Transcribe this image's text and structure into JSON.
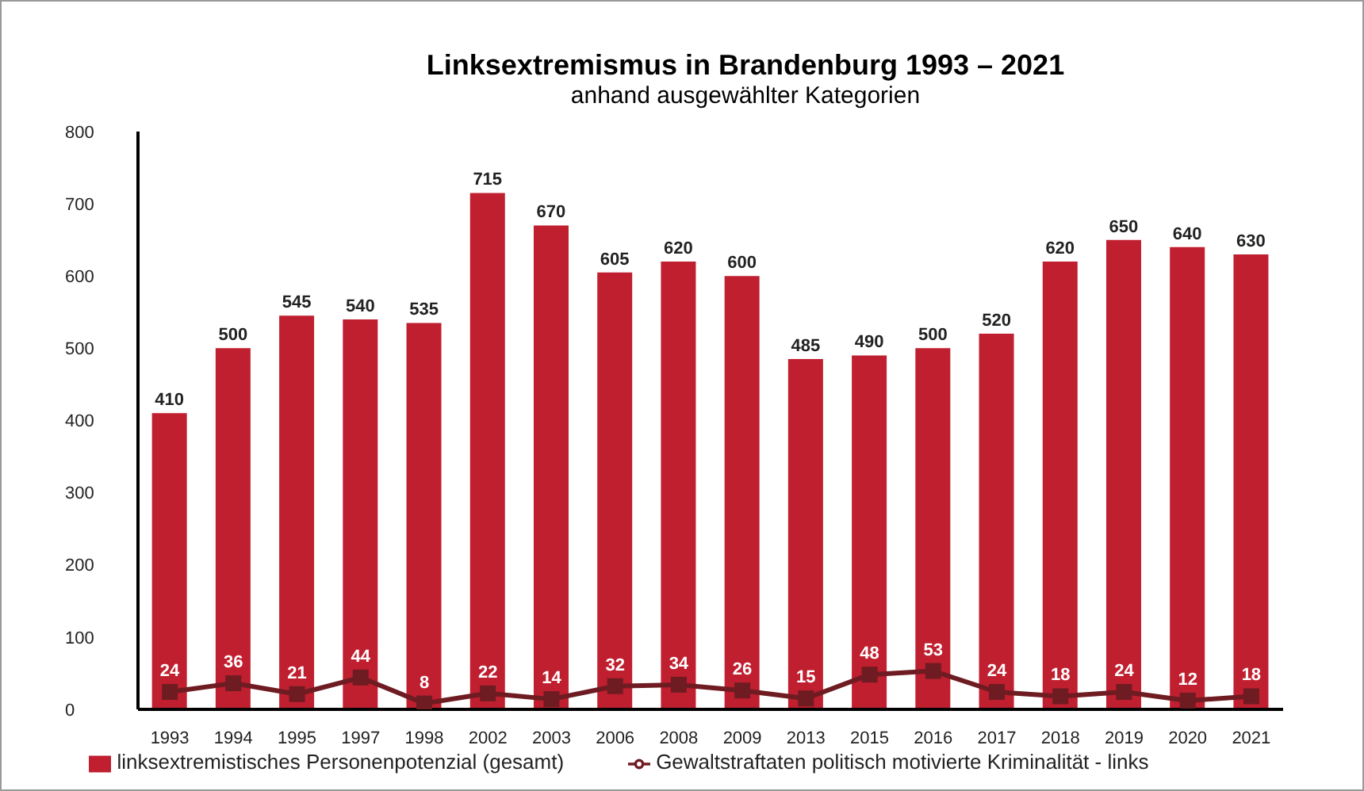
{
  "chart_data": {
    "type": "bar",
    "title": "Linksextremismus in Brandenburg 1993 – 2021",
    "subtitle": "anhand ausgewählter Kategorien",
    "categories": [
      "1993",
      "1994",
      "1995",
      "1997",
      "1998",
      "2002",
      "2003",
      "2006",
      "2008",
      "2009",
      "2013",
      "2015",
      "2016",
      "2017",
      "2018",
      "2019",
      "2020",
      "2021"
    ],
    "series": [
      {
        "name": "linksextremistisches Personenpotenzial (gesamt)",
        "color": "#c01f2f",
        "values": [
          410,
          500,
          545,
          540,
          535,
          715,
          670,
          605,
          620,
          600,
          485,
          490,
          500,
          520,
          620,
          650,
          640,
          630
        ]
      },
      {
        "name": "Gewaltstraftaten politisch motivierte Kriminalität - links",
        "type": "line",
        "color": "#6e1c22",
        "values": [
          24,
          36,
          21,
          44,
          8,
          22,
          14,
          32,
          34,
          26,
          15,
          48,
          53,
          24,
          18,
          24,
          12,
          18
        ]
      }
    ],
    "ylim": [
      0,
      800
    ],
    "yticks": [
      0,
      100,
      200,
      300,
      400,
      500,
      600,
      700,
      800
    ],
    "grid": false,
    "legend": "bottom",
    "data_labels": true,
    "marker": "square",
    "line_style": "solid"
  }
}
